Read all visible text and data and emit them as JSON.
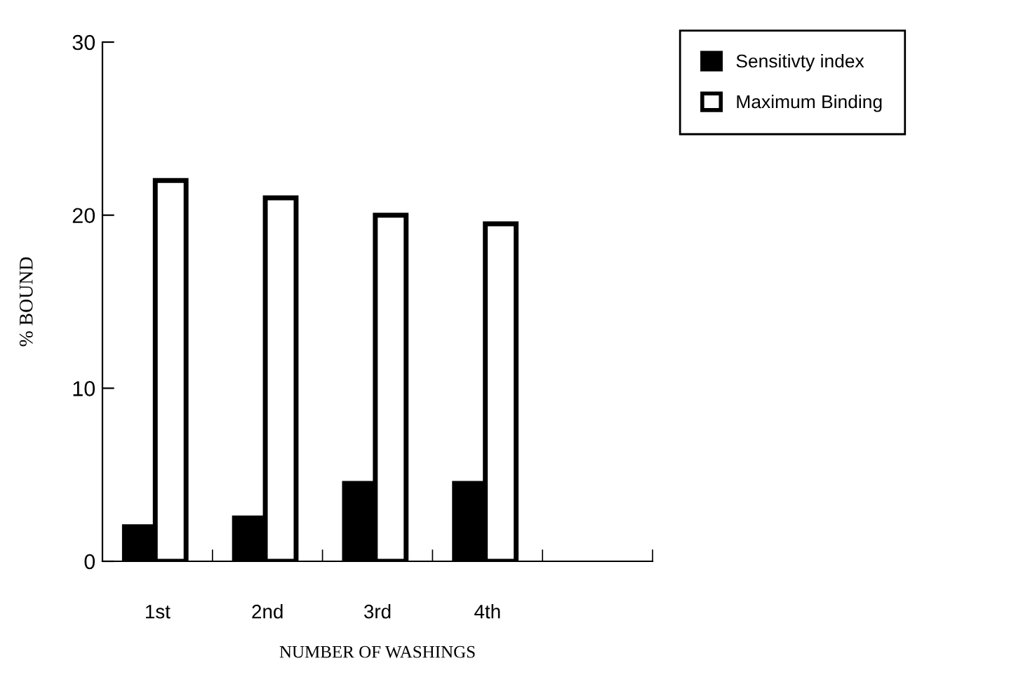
{
  "chart_data": {
    "type": "bar",
    "categories": [
      "1st",
      "2nd",
      "3rd",
      "4th",
      null
    ],
    "series": [
      {
        "name": "Sensitivty index",
        "color": "#000000",
        "values": [
          2,
          2.5,
          4.5,
          4.5,
          null
        ]
      },
      {
        "name": "Maximum Binding",
        "color": "#ffffff",
        "values": [
          22,
          21,
          20,
          19.5,
          null
        ]
      }
    ],
    "xlabel": "NUMBER OF WASHINGS",
    "ylabel": "% BOUND",
    "ylim": [
      0,
      30
    ],
    "yticks": [
      0,
      10,
      20,
      30
    ],
    "grid": false,
    "legend": "top right"
  }
}
